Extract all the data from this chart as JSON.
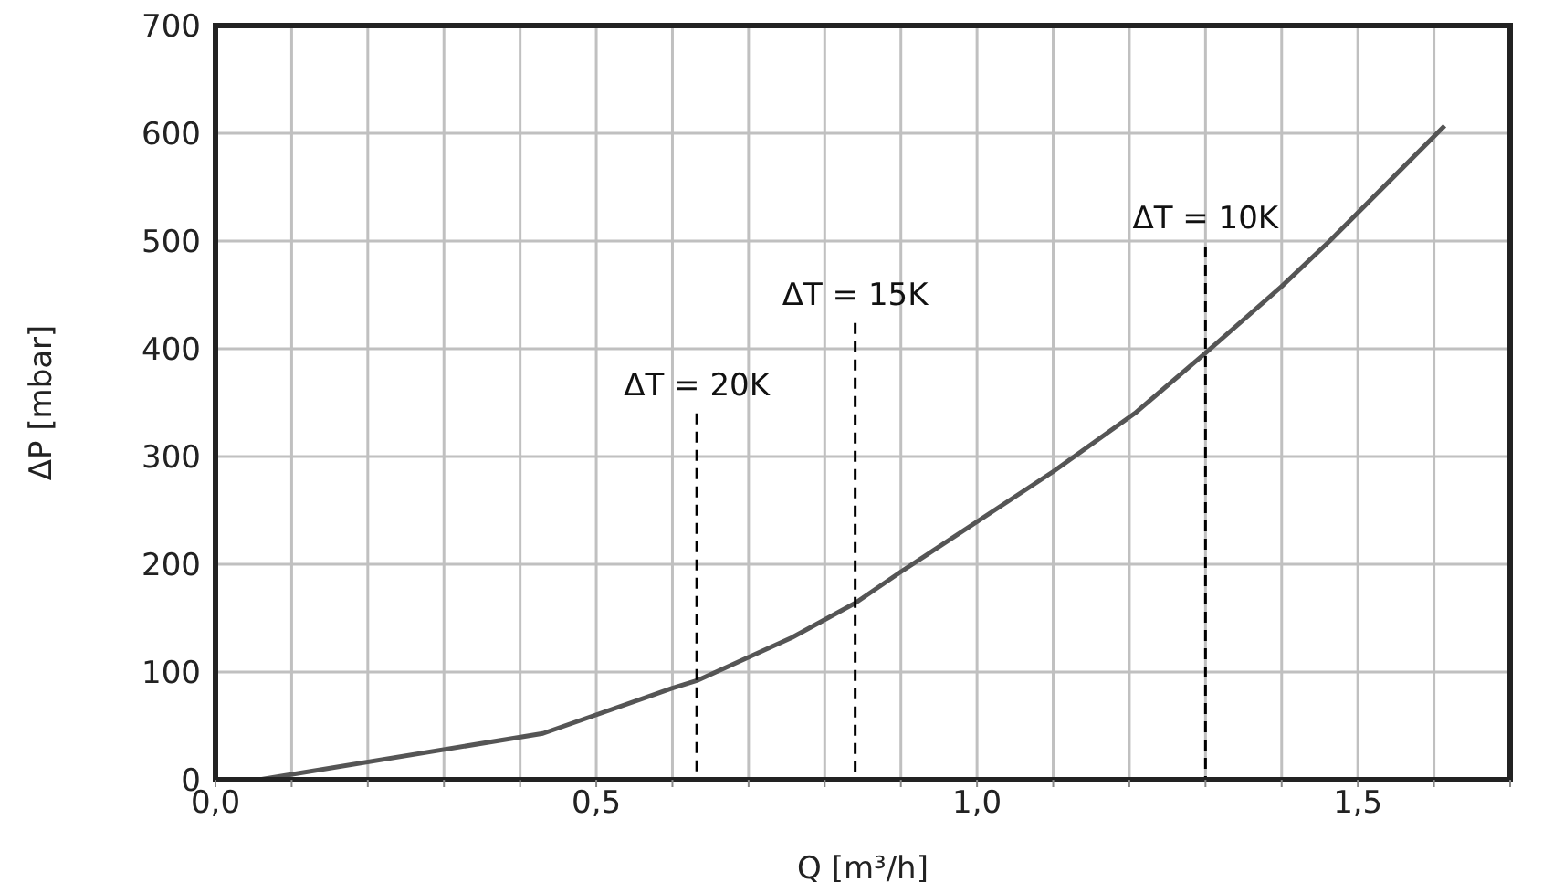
{
  "chart_data": {
    "type": "line",
    "xlabel": "Q [m³/h]",
    "ylabel": "ΔP [mbar]",
    "xlim": [
      0,
      1.7
    ],
    "ylim": [
      0,
      700
    ],
    "xticks": [
      {
        "value": 0,
        "label": "0,0"
      },
      {
        "value": 0.1,
        "label": null
      },
      {
        "value": 0.2,
        "label": null
      },
      {
        "value": 0.3,
        "label": null
      },
      {
        "value": 0.4,
        "label": null
      },
      {
        "value": 0.5,
        "label": "0,5"
      },
      {
        "value": 0.6,
        "label": null
      },
      {
        "value": 0.7,
        "label": null
      },
      {
        "value": 0.8,
        "label": null
      },
      {
        "value": 0.9,
        "label": null
      },
      {
        "value": 1.0,
        "label": "1,0"
      },
      {
        "value": 1.1,
        "label": null
      },
      {
        "value": 1.2,
        "label": null
      },
      {
        "value": 1.3,
        "label": null
      },
      {
        "value": 1.4,
        "label": null
      },
      {
        "value": 1.5,
        "label": "1,5"
      },
      {
        "value": 1.6,
        "label": null
      },
      {
        "value": 1.7,
        "label": null
      }
    ],
    "yticks": [
      0,
      100,
      200,
      300,
      400,
      500,
      600,
      700
    ],
    "grid": true,
    "marker": "none",
    "series": [
      {
        "color": "#555555",
        "line_style": "solid",
        "x": [
          0.057,
          0.43,
          0.6,
          0.632,
          0.757,
          0.84,
          0.9,
          1.1,
          1.207,
          1.3,
          1.4,
          1.463,
          1.614
        ],
        "values": [
          0,
          43,
          85,
          92,
          132,
          164,
          193,
          286,
          340,
          396,
          458,
          500,
          607
        ]
      },
      {
        "color": "#000000",
        "line_style": "dashed",
        "x": [
          0.632,
          0.632
        ],
        "values": [
          340,
          0
        ]
      },
      {
        "color": "#000000",
        "line_style": "dashed",
        "x": [
          0.84,
          0.84
        ],
        "values": [
          424,
          0
        ]
      },
      {
        "color": "#000000",
        "line_style": "dashed",
        "x": [
          1.3,
          1.3
        ],
        "values": [
          495,
          0
        ]
      }
    ],
    "annotations": [
      {
        "text": "ΔT = 20K",
        "x": 0.632,
        "y": 340
      },
      {
        "text": "ΔT = 15K",
        "x": 0.84,
        "y": 424
      },
      {
        "text": "ΔT = 10K",
        "x": 1.3,
        "y": 495
      }
    ]
  }
}
